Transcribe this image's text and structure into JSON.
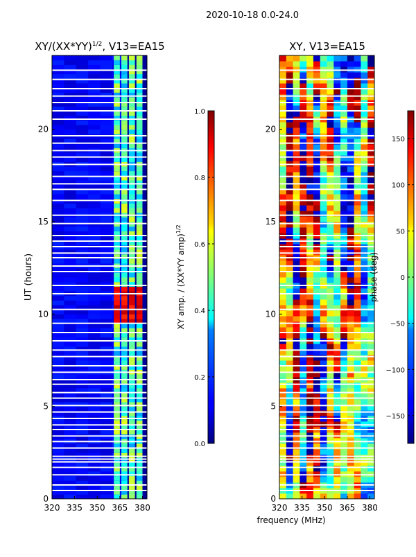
{
  "suptitle": "2020-10-18 0.0-24.0",
  "xlabel_common": "frequency (MHz)",
  "chart_data": [
    {
      "type": "heatmap",
      "title_prefix": "XY/(XX*YY)",
      "title_exp": "1/2",
      "title_suffix": ", V13=EA15",
      "ylabel": "UT (hours)",
      "xlim": [
        320,
        383
      ],
      "ylim": [
        0,
        24
      ],
      "xticks": [
        320,
        335,
        350,
        365,
        380
      ],
      "yticks": [
        0,
        5,
        10,
        15,
        20
      ],
      "colormap": "jet",
      "colorbar": {
        "label_prefix": "XY amp. / (XX*YY amp)",
        "label_exp": "1/2",
        "range": [
          0.0,
          1.0
        ],
        "ticks": [
          "0.0",
          "0.2",
          "0.4",
          "0.6",
          "0.8",
          "1.0"
        ]
      },
      "bright_bands_mhz": [
        [
          361,
          365
        ],
        [
          366,
          370
        ],
        [
          371,
          375
        ],
        [
          376,
          380
        ]
      ],
      "hot_spot": {
        "time_range_h": [
          9.5,
          11.5
        ],
        "value": 0.95
      }
    },
    {
      "type": "heatmap",
      "title": "XY, V13=EA15",
      "xlim": [
        320,
        383
      ],
      "ylim": [
        0,
        24
      ],
      "xticks": [
        320,
        335,
        350,
        365,
        380
      ],
      "yticks": [
        0,
        5,
        10,
        15,
        20
      ],
      "colormap": "jet",
      "colorbar": {
        "label": "phase (deg)",
        "range": [
          -180,
          180
        ],
        "ticks": [
          "150",
          "100",
          "50",
          "0",
          "−50",
          "−100",
          "−150"
        ]
      }
    }
  ],
  "gaps_hours": [
    0.45,
    0.75,
    1.3,
    1.7,
    2.0,
    2.15,
    2.3,
    2.75,
    3.1,
    3.4,
    3.75,
    4.0,
    4.35,
    4.7,
    5.05,
    5.45,
    5.75,
    6.2,
    6.45,
    6.85,
    7.2,
    7.7,
    8.05,
    8.55,
    9.0,
    9.5,
    10.25,
    11.1,
    11.55,
    12.3,
    12.6,
    13.05,
    13.3,
    13.65,
    13.95,
    14.25,
    14.9,
    15.35,
    16.15,
    16.75,
    17.05,
    17.45,
    18.1,
    18.5,
    18.85,
    19.25,
    19.65,
    20.55,
    21.0,
    21.45,
    21.8,
    22.2,
    22.7,
    23.2
  ]
}
